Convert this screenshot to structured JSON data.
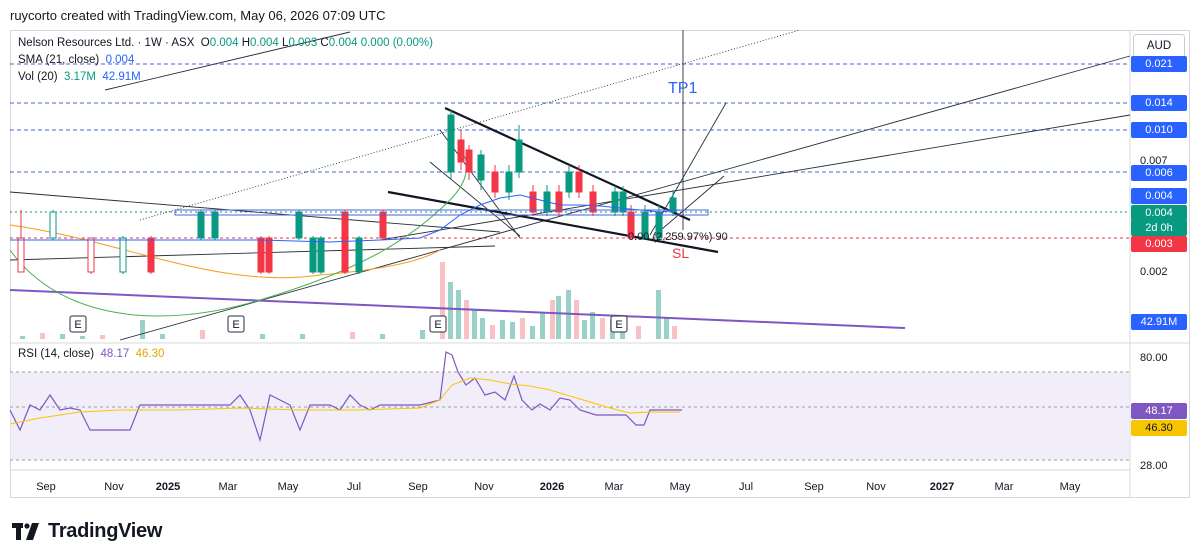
{
  "header": {
    "credit": "ruycorto created with TradingView.com, May 06, 2026 07:09 UTC"
  },
  "legend": {
    "symbol": "Nelson Resources Ltd. · 1W · ASX",
    "ohlc": {
      "o_label": "O",
      "o": "0.004",
      "h_label": "H",
      "h": "0.004",
      "l_label": "L",
      "l": "0.003",
      "c_label": "C",
      "c": "0.004",
      "change": "0.000 (0.00%)"
    },
    "sma_label": "SMA (21, close)",
    "sma_value": "0.004",
    "vol_label": "Vol (20)",
    "vol_value1": "3.17M",
    "vol_value2": "42.91M",
    "rsi_label": "RSI (14, close)",
    "rsi_value1": "48.17",
    "rsi_value2": "46.30"
  },
  "currency": "AUD",
  "price_scale": {
    "tags": [
      {
        "text": "0.021",
        "color": "#2962ff"
      },
      {
        "text": "0.014",
        "color": "#2962ff"
      },
      {
        "text": "0.010",
        "color": "#2962ff"
      },
      {
        "text": "0.006",
        "color": "#2962ff"
      },
      {
        "text": "0.004",
        "color": "#2962ff"
      },
      {
        "text": "0.004",
        "color": "#089981"
      },
      {
        "text": "2d 0h",
        "color": "#089981"
      },
      {
        "text": "0.003",
        "color": "#f23645"
      },
      {
        "text": "42.91M",
        "color": "#2962ff"
      },
      {
        "text": "48.17",
        "color": "#7e57c2"
      },
      {
        "text": "46.30",
        "color": "#f7c600"
      }
    ],
    "plain": [
      "0.007",
      "0.002",
      "80.00",
      "28.00"
    ]
  },
  "annotations": {
    "tp1": "TP1",
    "sl": "SL",
    "measure": "0.00 (2,259.97%) 90",
    "earnings": "E"
  },
  "time_axis": [
    "Sep",
    "Nov",
    "2025",
    "Mar",
    "May",
    "Jul",
    "Sep",
    "Nov",
    "2026",
    "Mar",
    "May",
    "Jul",
    "Sep",
    "Nov",
    "2027",
    "Mar",
    "May"
  ],
  "colors": {
    "up": "#089981",
    "down": "#f23645",
    "sma": "#2962ff",
    "rsi": "#7e57c2",
    "rsi_ma": "#f7c600",
    "ref": "#4a66d8"
  },
  "chart_data": {
    "type": "candlestick",
    "title": "Nelson Resources Ltd. · 1W · ASX",
    "price_levels": [
      0.021,
      0.014,
      0.01,
      0.006,
      0.004,
      0.003
    ],
    "ylim_note": "non-linear price scale",
    "rsi": {
      "current": 48.17,
      "ma": 46.3,
      "ylim": [
        28,
        80
      ]
    },
    "volume": {
      "current": "3.17M",
      "ma": "42.91M"
    },
    "sma21": 0.004
  },
  "branding": {
    "logo_text": "TradingView"
  }
}
